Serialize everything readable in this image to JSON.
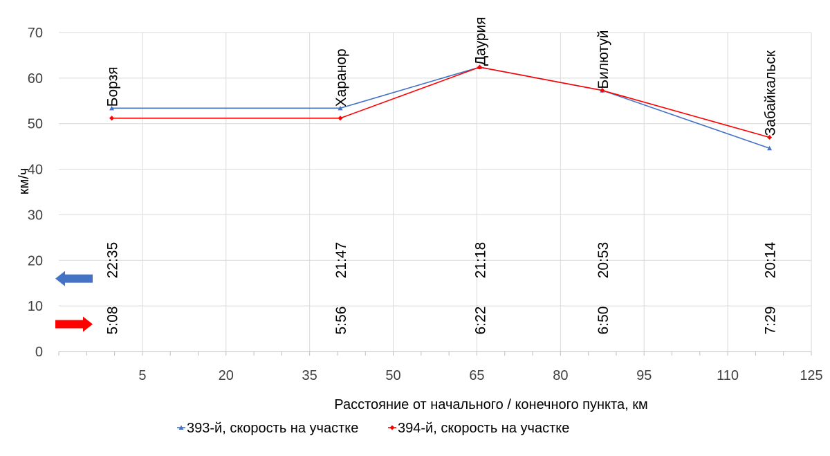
{
  "chart_data": {
    "type": "line",
    "title": "",
    "xlabel": "Расстояние от начального / конечного пункта, км",
    "ylabel": "км/ч",
    "xlim": [
      -10,
      125
    ],
    "ylim": [
      0,
      70
    ],
    "x_ticks": [
      "5",
      "20",
      "35",
      "50",
      "65",
      "80",
      "95",
      "110",
      "125"
    ],
    "y_ticks": [
      "0",
      "10",
      "20",
      "30",
      "40",
      "50",
      "60",
      "70"
    ],
    "grid": true,
    "legend_position": "bottom",
    "x": [
      -0.5,
      40.5,
      65.5,
      87.5,
      117.5
    ],
    "series": [
      {
        "name": "393-й, скорость на участке",
        "color": "#4472C4",
        "marker": "triangle",
        "values": [
          53.4,
          53.4,
          62.4,
          57.3,
          44.6
        ]
      },
      {
        "name": "394-й, скорость на участке",
        "color": "#FF0000",
        "marker": "diamond",
        "values": [
          51.2,
          51.2,
          62.4,
          57.3,
          47.0
        ]
      }
    ],
    "stations": [
      {
        "name": "Борзя",
        "x": -0.5,
        "label_y": 53.4,
        "time_back": "22:35",
        "time_forward": "5:08"
      },
      {
        "name": "Харанор",
        "x": 40.5,
        "label_y": 53.4,
        "time_back": "21:47",
        "time_forward": "5:56"
      },
      {
        "name": "Даурия",
        "x": 65.5,
        "label_y": 62.4,
        "time_back": "21:18",
        "time_forward": "6:22"
      },
      {
        "name": "Билютуй",
        "x": 87.5,
        "label_y": 57.3,
        "time_back": "20:53",
        "time_forward": "6:50"
      },
      {
        "name": "Забайкальск",
        "x": 117.5,
        "label_y": 47.0,
        "time_back": "20:14",
        "time_forward": "7:29"
      }
    ],
    "time_rows": [
      {
        "direction": "back",
        "color": "#4472C4",
        "y": 16
      },
      {
        "direction": "forward",
        "color": "#FF0000",
        "y": 6
      }
    ]
  }
}
